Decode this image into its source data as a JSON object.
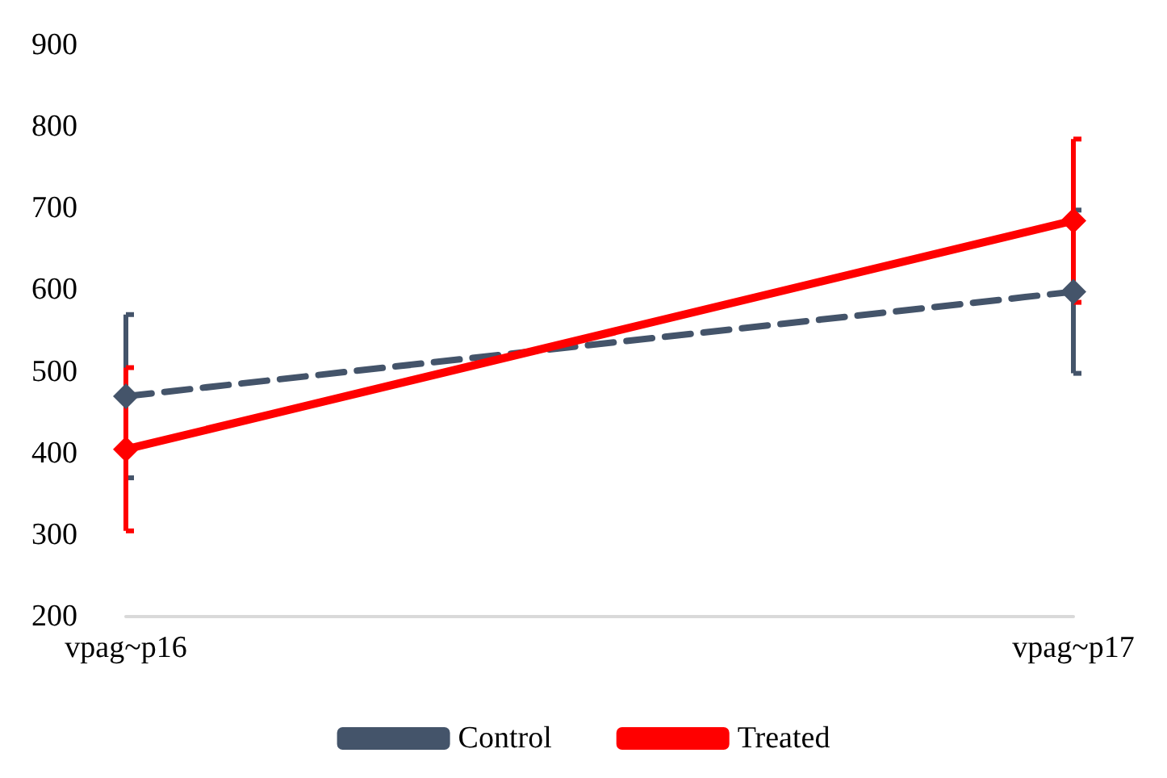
{
  "chart_data": {
    "type": "line",
    "categories": [
      "vpag~p16",
      "vpag~p17"
    ],
    "ylim": [
      200,
      900
    ],
    "yticks": [
      200,
      300,
      400,
      500,
      600,
      700,
      800,
      900
    ],
    "grid": false,
    "legend": "bottom",
    "marker": "diamond",
    "series": [
      {
        "name": "Control",
        "color": "#44546a",
        "line_style": "dashed",
        "values": [
          470,
          598
        ],
        "errors": [
          100,
          100
        ]
      },
      {
        "name": "Treated",
        "color": "#ff0000",
        "line_style": "solid",
        "values": [
          405,
          685
        ],
        "errors": [
          100,
          100
        ]
      }
    ]
  }
}
